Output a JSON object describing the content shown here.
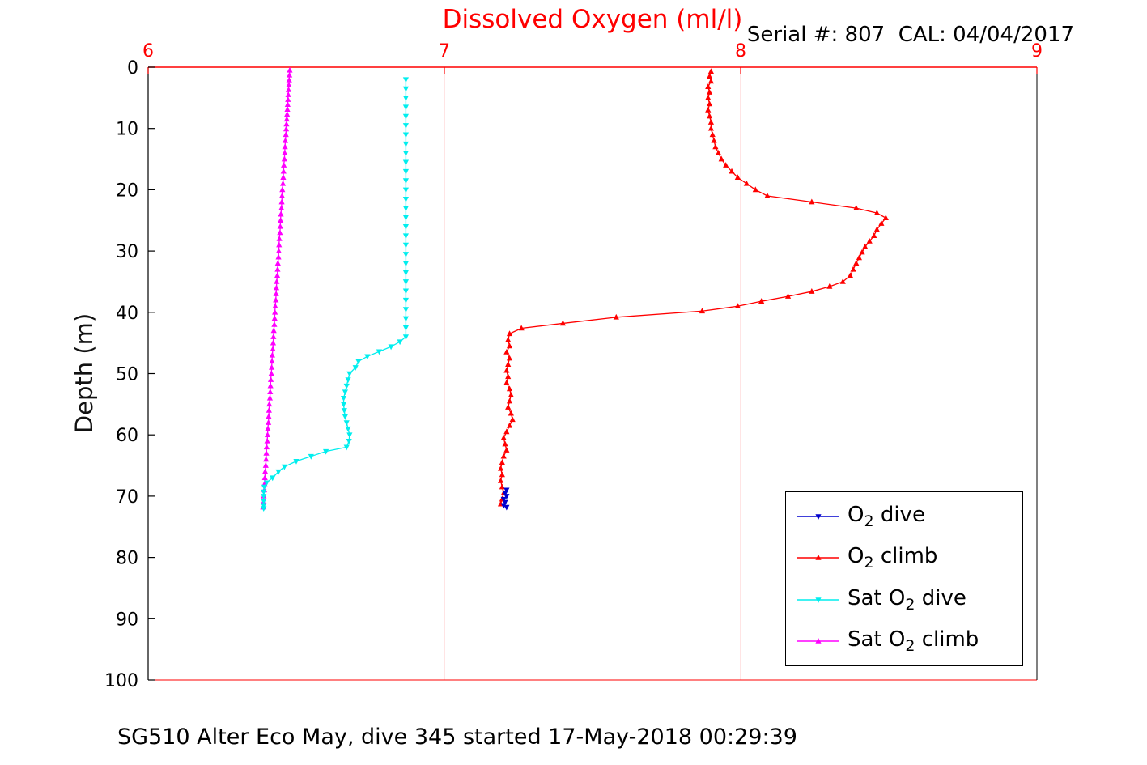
{
  "title": "Dissolved Oxygen (ml/l)",
  "subtitle": "Serial #: 807  CAL: 04/04/2017",
  "footer": "SG510 Alter Eco May, dive 345 started 17-May-2018 00:29:39",
  "ylabel": "Depth (m)",
  "colors": {
    "title": "#ff0000",
    "x_axis": "#ff0000",
    "y_axis": "#000000",
    "grid": "#ffc9c9",
    "o2_dive": "#0000cd",
    "o2_climb": "#ff0000",
    "sat_o2_dive": "#00eeee",
    "sat_o2_climb": "#ff00ff"
  },
  "chart_data": {
    "type": "line",
    "title": "Dissolved Oxygen (ml/l)",
    "xlabel": "Dissolved Oxygen (ml/l)",
    "ylabel": "Depth (m)",
    "x_axis_location": "top",
    "xlim": [
      6,
      9
    ],
    "ylim": [
      0,
      100
    ],
    "y_reversed_downward": true,
    "x_ticks": [
      6,
      7,
      8,
      9
    ],
    "y_ticks": [
      0,
      10,
      20,
      30,
      40,
      50,
      60,
      70,
      80,
      90,
      100
    ],
    "grid_vertical": [
      7,
      8
    ],
    "legend_position": "bottom-right",
    "series": [
      {
        "name": "o2-dive",
        "label_pre": "O",
        "label_sub": "2",
        "label_post": " dive",
        "color": "#0000cd",
        "marker": "down",
        "depths": [
          69,
          69.5,
          70,
          70.5,
          71,
          71.5,
          71.8
        ],
        "values": [
          7.21,
          7.205,
          7.21,
          7.2,
          7.205,
          7.2,
          7.21
        ]
      },
      {
        "name": "o2-climb",
        "label_pre": "O",
        "label_sub": "2",
        "label_post": " climb",
        "color": "#ff0000",
        "marker": "up",
        "depths": [
          0.7,
          1.5,
          2.3,
          3.2,
          4.1,
          5,
          6,
          7,
          8,
          9,
          10,
          11,
          12,
          13,
          14,
          15,
          16,
          17,
          18,
          19,
          20,
          21,
          22,
          23,
          23.8,
          24.6,
          25.5,
          26.5,
          27.5,
          28.4,
          29.3,
          30.2,
          31.1,
          32,
          33,
          34,
          35,
          35.8,
          36.6,
          37.4,
          38.2,
          39,
          39.8,
          40.8,
          41.8,
          42.6,
          43.5,
          44.5,
          45.5,
          46.5,
          47.5,
          48.5,
          49.5,
          50.5,
          51.5,
          52.5,
          53.5,
          54.5,
          55.5,
          56.5,
          57.5,
          58.5,
          59.5,
          60.5,
          61.5,
          62.5,
          63.5,
          64.5,
          65.5,
          66.5,
          67.5,
          68.5,
          69.5,
          70.5,
          71.3
        ],
        "values": [
          7.9,
          7.895,
          7.9,
          7.89,
          7.895,
          7.89,
          7.895,
          7.89,
          7.895,
          7.9,
          7.9,
          7.905,
          7.91,
          7.915,
          7.925,
          7.935,
          7.95,
          7.97,
          7.99,
          8.02,
          8.05,
          8.09,
          8.24,
          8.39,
          8.46,
          8.49,
          8.475,
          8.46,
          8.45,
          8.435,
          8.42,
          8.41,
          8.4,
          8.39,
          8.38,
          8.37,
          8.345,
          8.3,
          8.24,
          8.16,
          8.07,
          7.99,
          7.87,
          7.58,
          7.4,
          7.26,
          7.22,
          7.215,
          7.22,
          7.21,
          7.22,
          7.215,
          7.21,
          7.215,
          7.21,
          7.22,
          7.225,
          7.22,
          7.215,
          7.225,
          7.23,
          7.22,
          7.21,
          7.2,
          7.205,
          7.21,
          7.2,
          7.195,
          7.19,
          7.195,
          7.19,
          7.195,
          7.2,
          7.195,
          7.19
        ]
      },
      {
        "name": "sat-o2-dive",
        "label_pre": "Sat O",
        "label_sub": "2",
        "label_post": " dive",
        "color": "#00eeee",
        "marker": "down",
        "depths": [
          2,
          3.5,
          5,
          6.5,
          8,
          9.5,
          11,
          12.5,
          14,
          15.5,
          17,
          18.5,
          20,
          21.5,
          23,
          24.5,
          26,
          27.5,
          29,
          30.5,
          32,
          33.5,
          35,
          36.5,
          38,
          39.5,
          41,
          42.5,
          44,
          44.8,
          45.6,
          46.4,
          47.2,
          48,
          49,
          50,
          51,
          52,
          53,
          54,
          55,
          56,
          57,
          58,
          59,
          60,
          61,
          62,
          62.7,
          63.5,
          64.3,
          65.2,
          66,
          67,
          67.8,
          68.5,
          69.3,
          70,
          70.8,
          71.5,
          72
        ],
        "values": [
          6.87,
          6.87,
          6.87,
          6.87,
          6.87,
          6.87,
          6.87,
          6.87,
          6.87,
          6.87,
          6.87,
          6.87,
          6.87,
          6.87,
          6.87,
          6.87,
          6.87,
          6.87,
          6.87,
          6.87,
          6.87,
          6.87,
          6.87,
          6.87,
          6.87,
          6.87,
          6.87,
          6.87,
          6.87,
          6.85,
          6.82,
          6.78,
          6.74,
          6.71,
          6.7,
          6.68,
          6.675,
          6.67,
          6.665,
          6.66,
          6.66,
          6.662,
          6.665,
          6.67,
          6.675,
          6.68,
          6.678,
          6.67,
          6.6,
          6.55,
          6.5,
          6.46,
          6.44,
          6.42,
          6.4,
          6.392,
          6.39,
          6.39,
          6.39,
          6.39,
          6.39
        ]
      },
      {
        "name": "sat-o2-climb",
        "label_pre": "Sat O",
        "label_sub": "2",
        "label_post": " climb",
        "color": "#ff00ff",
        "marker": "up",
        "depths": [
          0.5,
          1.3,
          2.1,
          2.9,
          3.7,
          4.5,
          5.3,
          6.1,
          6.9,
          7.7,
          8.5,
          9.3,
          10.1,
          11,
          12,
          13,
          14,
          15,
          16,
          17,
          18,
          19,
          20,
          21,
          22,
          23,
          24,
          25,
          26,
          27,
          28,
          29,
          30,
          31,
          32,
          33,
          34,
          35,
          36,
          37,
          38,
          39,
          40,
          41,
          42,
          43,
          44,
          45,
          46,
          47,
          48,
          49,
          50,
          51,
          52,
          53,
          54,
          55,
          56,
          57,
          58,
          59,
          60,
          61,
          62,
          63,
          64,
          65,
          66,
          67,
          68,
          69,
          70,
          71,
          71.8
        ],
        "values": [
          6.478,
          6.477,
          6.476,
          6.475,
          6.474,
          6.473,
          6.472,
          6.471,
          6.47,
          6.469,
          6.468,
          6.467,
          6.466,
          6.465,
          6.463,
          6.462,
          6.461,
          6.46,
          6.458,
          6.457,
          6.456,
          6.455,
          6.453,
          6.452,
          6.451,
          6.45,
          6.448,
          6.447,
          6.446,
          6.445,
          6.443,
          6.442,
          6.441,
          6.44,
          6.438,
          6.437,
          6.436,
          6.434,
          6.433,
          6.432,
          6.431,
          6.429,
          6.428,
          6.427,
          6.426,
          6.424,
          6.423,
          6.422,
          6.421,
          6.419,
          6.418,
          6.417,
          6.416,
          6.414,
          6.413,
          6.412,
          6.411,
          6.409,
          6.408,
          6.407,
          6.406,
          6.404,
          6.403,
          6.402,
          6.4,
          6.399,
          6.398,
          6.397,
          6.395,
          6.394,
          6.393,
          6.392,
          6.39,
          6.389,
          6.388
        ]
      }
    ]
  }
}
